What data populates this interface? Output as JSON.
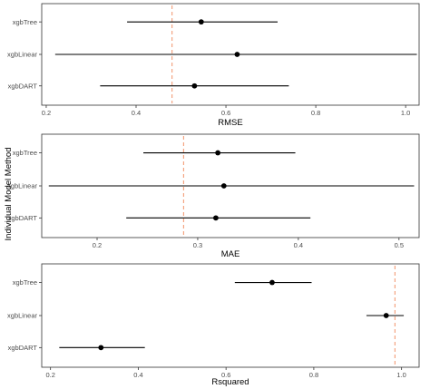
{
  "y_axis_title": "Individual Model Method",
  "colors": {
    "reference_line": "#f4a582",
    "interval": "#000000",
    "point": "#000000",
    "panel_border": "#333333"
  },
  "chart_data": [
    {
      "type": "scatter",
      "subtype": "point-range",
      "xlabel": "RMSE",
      "xlim": [
        0.19,
        1.03
      ],
      "xticks": [
        0.2,
        0.4,
        0.6,
        0.8,
        1.0
      ],
      "xtick_labels": [
        "0.2",
        "0.4",
        "0.6",
        "0.8",
        "1.0"
      ],
      "categories": [
        "xgbTree",
        "xgbLinear",
        "xgbDART"
      ],
      "points": [
        {
          "category": "xgbTree",
          "low": 0.38,
          "value": 0.545,
          "high": 0.715
        },
        {
          "category": "xgbLinear",
          "low": 0.22,
          "value": 0.625,
          "high": 1.025
        },
        {
          "category": "xgbDART",
          "low": 0.32,
          "value": 0.53,
          "high": 0.74
        }
      ],
      "reference_x": 0.48,
      "grid": false
    },
    {
      "type": "scatter",
      "subtype": "point-range",
      "xlabel": "MAE",
      "xlim": [
        0.145,
        0.52
      ],
      "xticks": [
        0.2,
        0.3,
        0.4,
        0.5
      ],
      "xtick_labels": [
        "0.2",
        "0.3",
        "0.4",
        "0.5"
      ],
      "categories": [
        "xgbTree",
        "xgbLinear",
        "xgbDART"
      ],
      "points": [
        {
          "category": "xgbTree",
          "low": 0.246,
          "value": 0.32,
          "high": 0.397
        },
        {
          "category": "xgbLinear",
          "low": 0.152,
          "value": 0.326,
          "high": 0.515
        },
        {
          "category": "xgbDART",
          "low": 0.229,
          "value": 0.318,
          "high": 0.412
        }
      ],
      "reference_x": 0.286,
      "grid": false
    },
    {
      "type": "scatter",
      "subtype": "point-range",
      "xlabel": "Rsquared",
      "xlim": [
        0.18,
        1.04
      ],
      "xticks": [
        0.2,
        0.4,
        0.6,
        0.8,
        1.0
      ],
      "xtick_labels": [
        "0.2",
        "0.4",
        "0.6",
        "0.8",
        "1.0"
      ],
      "categories": [
        "xgbTree",
        "xgbLinear",
        "xgbDART"
      ],
      "points": [
        {
          "category": "xgbTree",
          "low": 0.62,
          "value": 0.705,
          "high": 0.795
        },
        {
          "category": "xgbLinear",
          "low": 0.92,
          "value": 0.965,
          "high": 1.005
        },
        {
          "category": "xgbDART",
          "low": 0.22,
          "value": 0.315,
          "high": 0.415
        }
      ],
      "reference_x": 0.985,
      "grid": false
    }
  ]
}
